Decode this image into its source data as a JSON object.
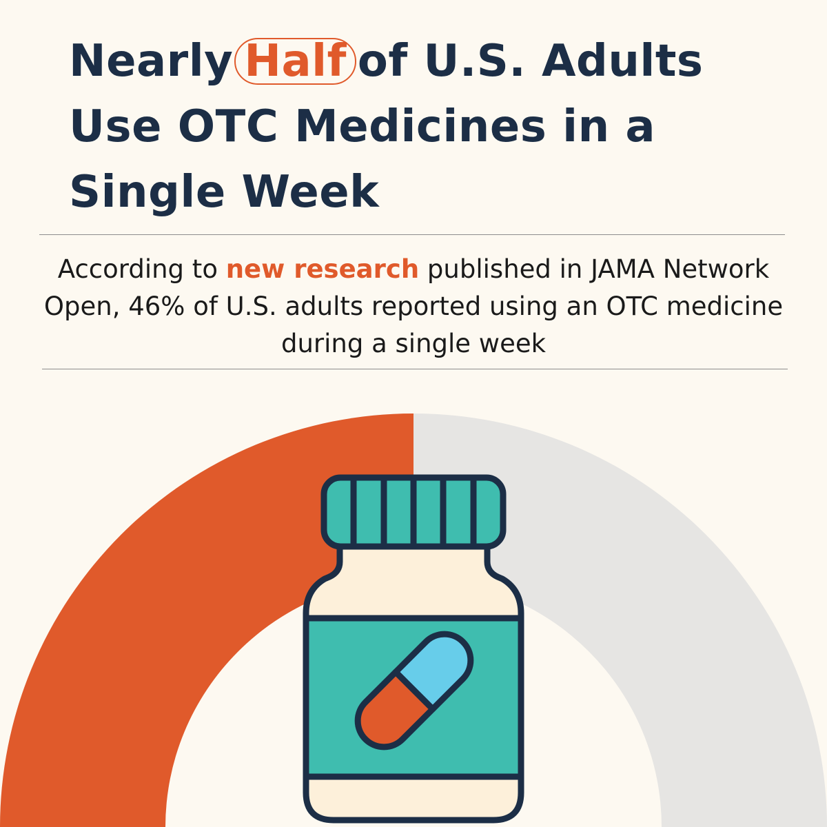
{
  "headline": {
    "line1_before": "Nearly",
    "highlight": "Half",
    "line1_after": "of U.S. Adults",
    "line2": "Use OTC Medicines in a",
    "line3": "Single Week"
  },
  "subtitle": {
    "before": "According to ",
    "highlight": "new research",
    "after": " published in JAMA Network Open, 46% of U.S. adults reported using an OTC medicine during a single week"
  },
  "gauge": {
    "filled_fraction": 0.5,
    "filled_color": "#E05A2B",
    "track_color": "#E6E5E3"
  },
  "icon": {
    "name": "pill-bottle-icon",
    "cap_color": "#3FBDAF",
    "body_color": "#FDF0DA",
    "label_color": "#3FBDAF",
    "capsule_top_color": "#67CDEA",
    "capsule_bottom_color": "#E05A2B",
    "outline_color": "#1C2E46"
  },
  "colors": {
    "background": "#FDF9F1",
    "text_dark": "#1C2E46",
    "accent": "#E05A2B"
  }
}
